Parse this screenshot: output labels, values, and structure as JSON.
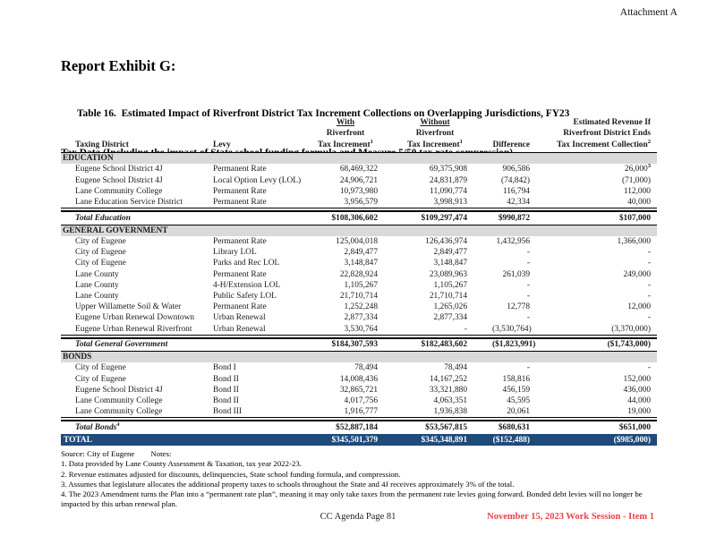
{
  "page": {
    "attachment_label": "Attachment A",
    "report_title": "Report Exhibit G:",
    "table_title_line1": "Table 16.  Estimated Impact of Riverfront District Tax Increment Collections on Overlapping Jurisdictions, FY23",
    "table_title_line2": "Tax Data (Including the impact of State school funding formula and Measure 5/50 tax rate compression)",
    "footer_center": "CC Agenda Page 81",
    "footer_right": "November 15, 2023 Work Session - Item 1"
  },
  "colors": {
    "section_header_bg": "#D9D9D9",
    "grand_total_bg": "#1F4A7A",
    "footer_red": "#E8424A"
  },
  "table": {
    "header": {
      "taxing_district": "Taxing District",
      "levy": "Levy",
      "with_label": "With",
      "without_label": "Without",
      "riverfront": "Riverfront",
      "tax_increment": "Tax Increment",
      "tax_increment_sup": "1",
      "difference": "Difference",
      "est_line1": "Estimated Revenue If",
      "est_line2": "Riverfront District Ends",
      "est_line3": "Tax Increment Collection",
      "est_sup": "2"
    },
    "sections": [
      {
        "name": "EDUCATION",
        "rows": [
          {
            "district": "Eugene School District 4J",
            "levy": "Permanent Rate",
            "with": "68,469,322",
            "without": "69,375,908",
            "difference": "906,586",
            "estimated": "26,000",
            "estimated_sup": "3"
          },
          {
            "district": "Eugene School District 4J",
            "levy": "Local Option Levy (LOL)",
            "with": "24,906,721",
            "without": "24,831,879",
            "difference": "(74,842)",
            "estimated": "(71,000)"
          },
          {
            "district": "Lane Community College",
            "levy": "Permanent Rate",
            "with": "10,973,980",
            "without": "11,090,774",
            "difference": "116,794",
            "estimated": "112,000"
          },
          {
            "district": "Lane Education Service District",
            "levy": "Permanent Rate",
            "with": "3,956,579",
            "without": "3,998,913",
            "difference": "42,334",
            "estimated": "40,000"
          }
        ],
        "total": {
          "label": "Total Education",
          "with": "$108,306,602",
          "without": "$109,297,474",
          "difference": "$990,872",
          "estimated": "$107,000"
        }
      },
      {
        "name": "GENERAL GOVERNMENT",
        "rows": [
          {
            "district": "City of Eugene",
            "levy": "Permanent Rate",
            "with": "125,004,018",
            "without": "126,436,974",
            "difference": "1,432,956",
            "estimated": "1,366,000"
          },
          {
            "district": "City of Eugene",
            "levy": "Library LOL",
            "with": "2,849,477",
            "without": "2,849,477",
            "difference": "-",
            "estimated": "-"
          },
          {
            "district": "City of Eugene",
            "levy": "Parks and Rec LOL",
            "with": "3,148,847",
            "without": "3,148,847",
            "difference": "-",
            "estimated": "-"
          },
          {
            "district": "Lane County",
            "levy": "Permanent Rate",
            "with": "22,828,924",
            "without": "23,089,963",
            "difference": "261,039",
            "estimated": "249,000"
          },
          {
            "district": "Lane County",
            "levy": "4-H/Extension LOL",
            "with": "1,105,267",
            "without": "1,105,267",
            "difference": "-",
            "estimated": "-"
          },
          {
            "district": "Lane County",
            "levy": "Public Safety LOL",
            "with": "21,710,714",
            "without": "21,710,714",
            "difference": "-",
            "estimated": "-"
          },
          {
            "district": "Upper Willamette Soil & Water",
            "levy": "Permanent Rate",
            "with": "1,252,248",
            "without": "1,265,026",
            "difference": "12,778",
            "estimated": "12,000"
          },
          {
            "district": "Eugene Urban Renewal Downtown",
            "levy": "Urban Renewal",
            "with": "2,877,334",
            "without": "2,877,334",
            "difference": "-",
            "estimated": "-"
          },
          {
            "district": "Eugene Urban Renewal Riverfront",
            "levy": "Urban Renewal",
            "with": "3,530,764",
            "without": "-",
            "difference": "(3,530,764)",
            "estimated": "(3,370,000)"
          }
        ],
        "total": {
          "label": "Total General Government",
          "with": "$184,307,593",
          "without": "$182,483,602",
          "difference": "($1,823,991)",
          "estimated": "($1,743,000)"
        }
      },
      {
        "name": "BONDS",
        "rows": [
          {
            "district": "City of Eugene",
            "levy": "Bond I",
            "with": "78,494",
            "without": "78,494",
            "difference": "-",
            "estimated": "-"
          },
          {
            "district": "City of Eugene",
            "levy": "Bond II",
            "with": "14,008,436",
            "without": "14,167,252",
            "difference": "158,816",
            "estimated": "152,000"
          },
          {
            "district": "Eugene School District 4J",
            "levy": "Bond II",
            "with": "32,865,721",
            "without": "33,321,880",
            "difference": "456,159",
            "estimated": "436,000"
          },
          {
            "district": "Lane Community College",
            "levy": "Bond II",
            "with": "4,017,756",
            "without": "4,063,351",
            "difference": "45,595",
            "estimated": "44,000"
          },
          {
            "district": "Lane Community College",
            "levy": "Bond III",
            "with": "1,916,777",
            "without": "1,936,838",
            "difference": "20,061",
            "estimated": "19,000"
          }
        ],
        "total": {
          "label": "Total Bonds",
          "label_sup": "4",
          "with": "$52,887,184",
          "without": "$53,567,815",
          "difference": "$680,631",
          "estimated": "$651,000"
        }
      }
    ],
    "grand_total": {
      "label": "TOTAL",
      "with": "$345,501,379",
      "without": "$345,348,891",
      "difference": "($152,488)",
      "estimated": "($985,000)"
    }
  },
  "notes": {
    "source": "Source: City of Eugene",
    "notes_label": "Notes:",
    "items": [
      "1. Data provided by Lane County Assessment & Taxation, tax year 2022-23.",
      "2. Revenue estimates adjusted for discounts, delinquencies, State school funding formula, and compression.",
      "3. Assumes that legislature allocates the additional property taxes to schools throughout the State and 4J receives approximately 3% of the total.",
      "4. The 2023 Amendment turns the Plan into a “permanent rate plan”, meaning it may only take taxes from the permanent rate levies going forward. Bonded debt levies will no longer be impacted by this urban renewal plan."
    ]
  }
}
